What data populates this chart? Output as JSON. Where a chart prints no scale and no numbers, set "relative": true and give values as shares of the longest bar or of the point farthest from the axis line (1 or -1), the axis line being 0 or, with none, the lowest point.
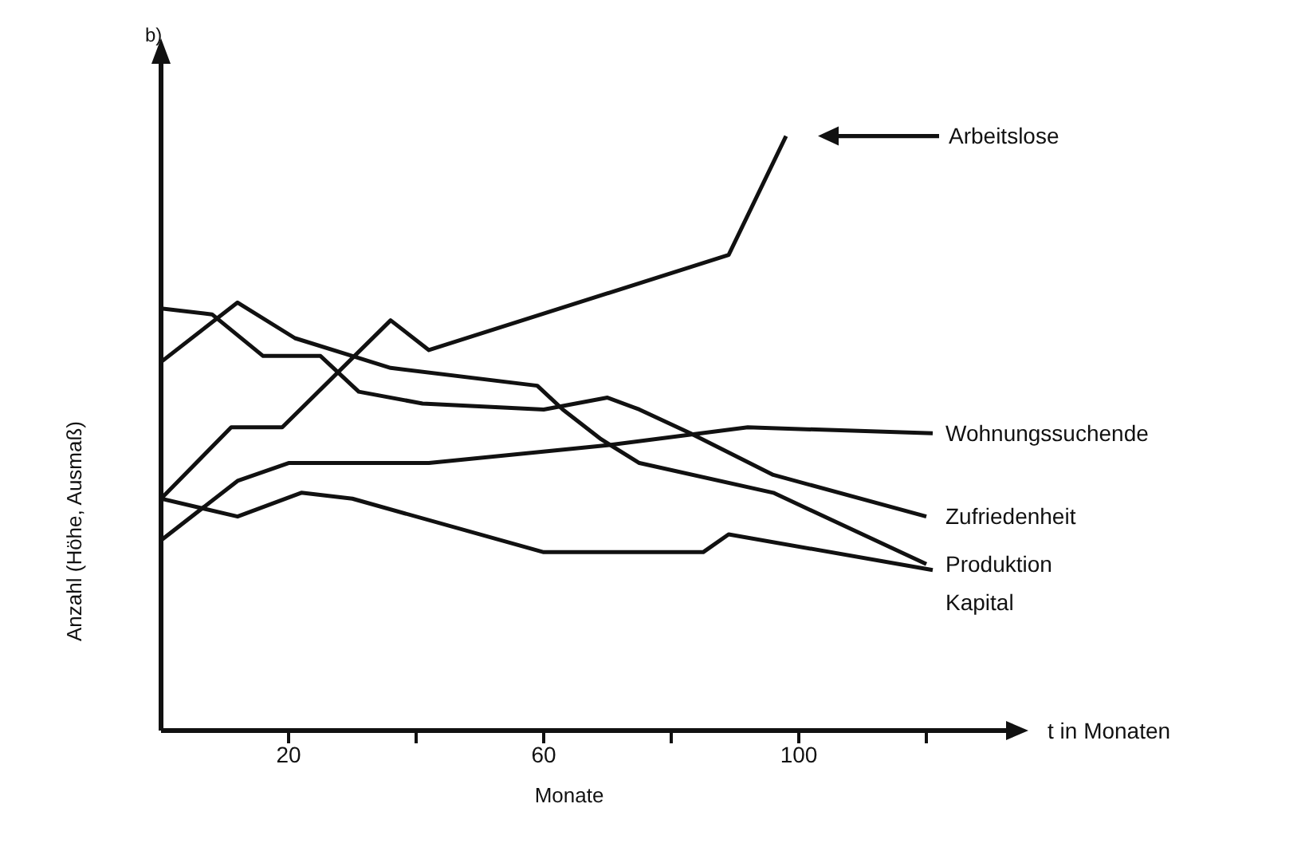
{
  "chart_data": {
    "type": "line",
    "relative": true,
    "xlabel": "Monate",
    "ylabel": "Anzahl (Höhe, Ausmaß)",
    "annotations": [
      "b)",
      "t in Monaten"
    ],
    "xlim": [
      0,
      128
    ],
    "xticks": [
      20,
      {
        "value": 40,
        "label": null
      },
      60,
      {
        "value": 80,
        "label": null
      },
      100,
      {
        "value": 120,
        "label": null
      }
    ],
    "grid": false,
    "legend": false,
    "marker": "none",
    "line_style": "solid",
    "series": [
      {
        "name": "Arbeitslose",
        "color": "#111111",
        "x": [
          0,
          11,
          19,
          36,
          42,
          89,
          98
        ],
        "values": [
          0.39,
          0.51,
          0.51,
          0.69,
          0.64,
          0.8,
          1.0
        ]
      },
      {
        "name": "Wohnungssuchende",
        "color": "#111111",
        "x": [
          0,
          12,
          20,
          42,
          70,
          92,
          121
        ],
        "values": [
          0.32,
          0.42,
          0.45,
          0.45,
          0.48,
          0.51,
          0.5
        ]
      },
      {
        "name": "Zufriedenheit",
        "color": "#111111",
        "x": [
          0,
          8,
          16,
          25,
          31,
          41,
          60,
          65,
          70,
          75,
          83,
          96,
          120
        ],
        "values": [
          0.71,
          0.7,
          0.63,
          0.63,
          0.57,
          0.55,
          0.54,
          0.55,
          0.56,
          0.54,
          0.5,
          0.43,
          0.36
        ]
      },
      {
        "name": "Produktion",
        "color": "#111111",
        "x": [
          0,
          12,
          21,
          30,
          36,
          59,
          63,
          69,
          75,
          96,
          120
        ],
        "values": [
          0.62,
          0.72,
          0.66,
          0.63,
          0.61,
          0.58,
          0.54,
          0.49,
          0.45,
          0.4,
          0.28
        ]
      },
      {
        "name": "Kapital",
        "color": "#111111",
        "x": [
          0,
          12,
          22,
          30,
          60,
          85,
          89,
          121
        ],
        "values": [
          0.39,
          0.36,
          0.4,
          0.39,
          0.3,
          0.3,
          0.33,
          0.27
        ]
      }
    ]
  }
}
